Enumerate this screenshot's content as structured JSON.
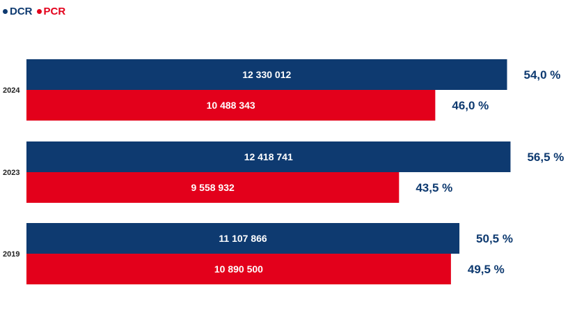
{
  "chart_data": {
    "type": "bar",
    "orientation": "horizontal",
    "categories": [
      "2024",
      "2023",
      "2019"
    ],
    "series": [
      {
        "name": "DCR",
        "color": "#0e3a70",
        "values": [
          12330012,
          12418741,
          11107866
        ],
        "value_labels": [
          "12 330 012",
          "12 418 741",
          "11 107 866"
        ],
        "share_labels": [
          "54,0 %",
          "56,5 %",
          "50,5 %"
        ]
      },
      {
        "name": "PCR",
        "color": "#e3001b",
        "values": [
          10488343,
          9558932,
          10890500
        ],
        "value_labels": [
          "10 488 343",
          "9 558 932",
          "10 890 500"
        ],
        "share_labels": [
          "46,0 %",
          "43,5 %",
          "49,5 %"
        ]
      }
    ],
    "xlim": [
      0,
      14000000
    ],
    "grid": false,
    "legend": "top-left"
  }
}
